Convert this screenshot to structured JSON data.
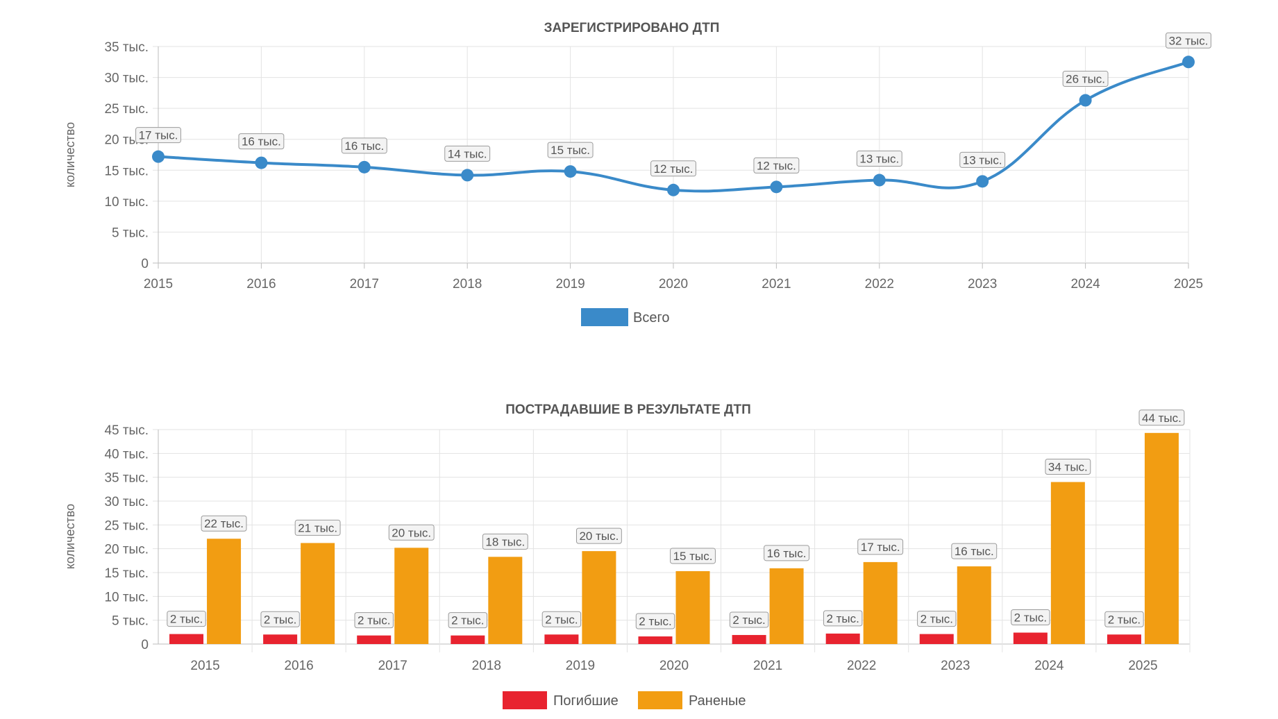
{
  "charts": [
    {
      "type": "line",
      "title": "ЗАРЕГИСТРИРОВАНО ДТП",
      "ylabel": "количество",
      "categories": [
        "2015",
        "2016",
        "2017",
        "2018",
        "2019",
        "2020",
        "2021",
        "2022",
        "2023",
        "2024",
        "2025"
      ],
      "y_ticks": [
        {
          "value": 0,
          "label": "0"
        },
        {
          "value": 5000,
          "label": "5 тыс."
        },
        {
          "value": 10000,
          "label": "10 тыс."
        },
        {
          "value": 15000,
          "label": "15 тыс."
        },
        {
          "value": 20000,
          "label": "20 тыс."
        },
        {
          "value": 25000,
          "label": "25 тыс."
        },
        {
          "value": 30000,
          "label": "30 тыс."
        },
        {
          "value": 35000,
          "label": "35 тыс."
        }
      ],
      "ylim": [
        0,
        35000
      ],
      "grid": true,
      "legend_position": "bottom",
      "series": [
        {
          "name": "Всего",
          "color": "#3a8ac9",
          "values": [
            17200,
            16200,
            15500,
            14200,
            14800,
            11800,
            12300,
            13400,
            13200,
            26300,
            32500
          ],
          "data_labels": [
            "17 тыс.",
            "16 тыс.",
            "16 тыс.",
            "14 тыс.",
            "15 тыс.",
            "12 тыс.",
            "12 тыс.",
            "13 тыс.",
            "13 тыс.",
            "26 тыс.",
            "32 тыс."
          ]
        }
      ]
    },
    {
      "type": "bar",
      "title": "ПОСТРАДАВШИЕ В РЕЗУЛЬТАТЕ ДТП",
      "ylabel": "количество",
      "categories": [
        "2015",
        "2016",
        "2017",
        "2018",
        "2019",
        "2020",
        "2021",
        "2022",
        "2023",
        "2024",
        "2025"
      ],
      "y_ticks": [
        {
          "value": 0,
          "label": "0"
        },
        {
          "value": 5000,
          "label": "5 тыс."
        },
        {
          "value": 10000,
          "label": "10 тыс."
        },
        {
          "value": 15000,
          "label": "15 тыс."
        },
        {
          "value": 20000,
          "label": "20 тыс."
        },
        {
          "value": 25000,
          "label": "25 тыс."
        },
        {
          "value": 30000,
          "label": "30 тыс."
        },
        {
          "value": 35000,
          "label": "35 тыс."
        },
        {
          "value": 40000,
          "label": "40 тыс."
        },
        {
          "value": 45000,
          "label": "45 тыс."
        }
      ],
      "ylim": [
        0,
        45000
      ],
      "grid": true,
      "legend_position": "bottom",
      "series": [
        {
          "name": "Погибшие",
          "color": "#e8232f",
          "values": [
            2100,
            2000,
            1800,
            1800,
            2000,
            1600,
            1900,
            2200,
            2100,
            2400,
            2000
          ],
          "data_labels": [
            "2 тыс.",
            "2 тыс.",
            "2 тыс.",
            "2 тыс.",
            "2 тыс.",
            "2 тыс.",
            "2 тыс.",
            "2 тыс.",
            "2 тыс.",
            "2 тыс.",
            "2 тыс."
          ]
        },
        {
          "name": "Раненые",
          "color": "#f29d12",
          "values": [
            22100,
            21200,
            20200,
            18300,
            19500,
            15300,
            15900,
            17200,
            16300,
            34000,
            44300
          ],
          "data_labels": [
            "22 тыс.",
            "21 тыс.",
            "20 тыс.",
            "18 тыс.",
            "20 тыс.",
            "15 тыс.",
            "16 тыс.",
            "17 тыс.",
            "16 тыс.",
            "34 тыс.",
            "44 тыс."
          ]
        }
      ]
    }
  ]
}
